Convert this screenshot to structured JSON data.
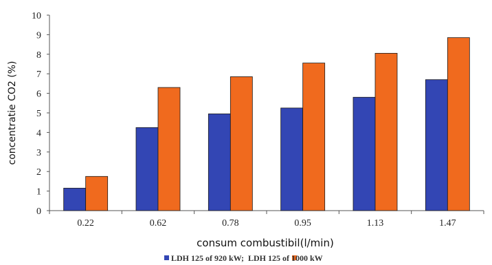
{
  "chart_data": {
    "type": "bar",
    "categories": [
      "0.22",
      "0.62",
      "0.78",
      "0.95",
      "1.13",
      "1.47"
    ],
    "series": [
      {
        "name": "LDH 125 of 920 kW",
        "values": [
          1.15,
          4.25,
          4.95,
          5.25,
          5.8,
          6.7
        ],
        "color": "#3346b4"
      },
      {
        "name": "LDH 125 of 1000 kW",
        "values": [
          1.75,
          6.3,
          6.85,
          7.55,
          8.05,
          8.85
        ],
        "color": "#f06a1e"
      }
    ],
    "yticks": [
      "0",
      "1",
      "2",
      "3",
      "4",
      "5",
      "6",
      "7",
      "8",
      "9",
      "10"
    ],
    "ylim": [
      0,
      10
    ],
    "title": "",
    "xlabel": "consum combustibil(l/min)",
    "ylabel": "concentratie CO2   (%)",
    "legend_text": "LDH 125 of 920 kW;  LDH 125 of 1000 kW",
    "legend_position": "bottom",
    "grid": false,
    "axis_color": "#555555",
    "bar_edge_color": "#1a1a1a"
  }
}
